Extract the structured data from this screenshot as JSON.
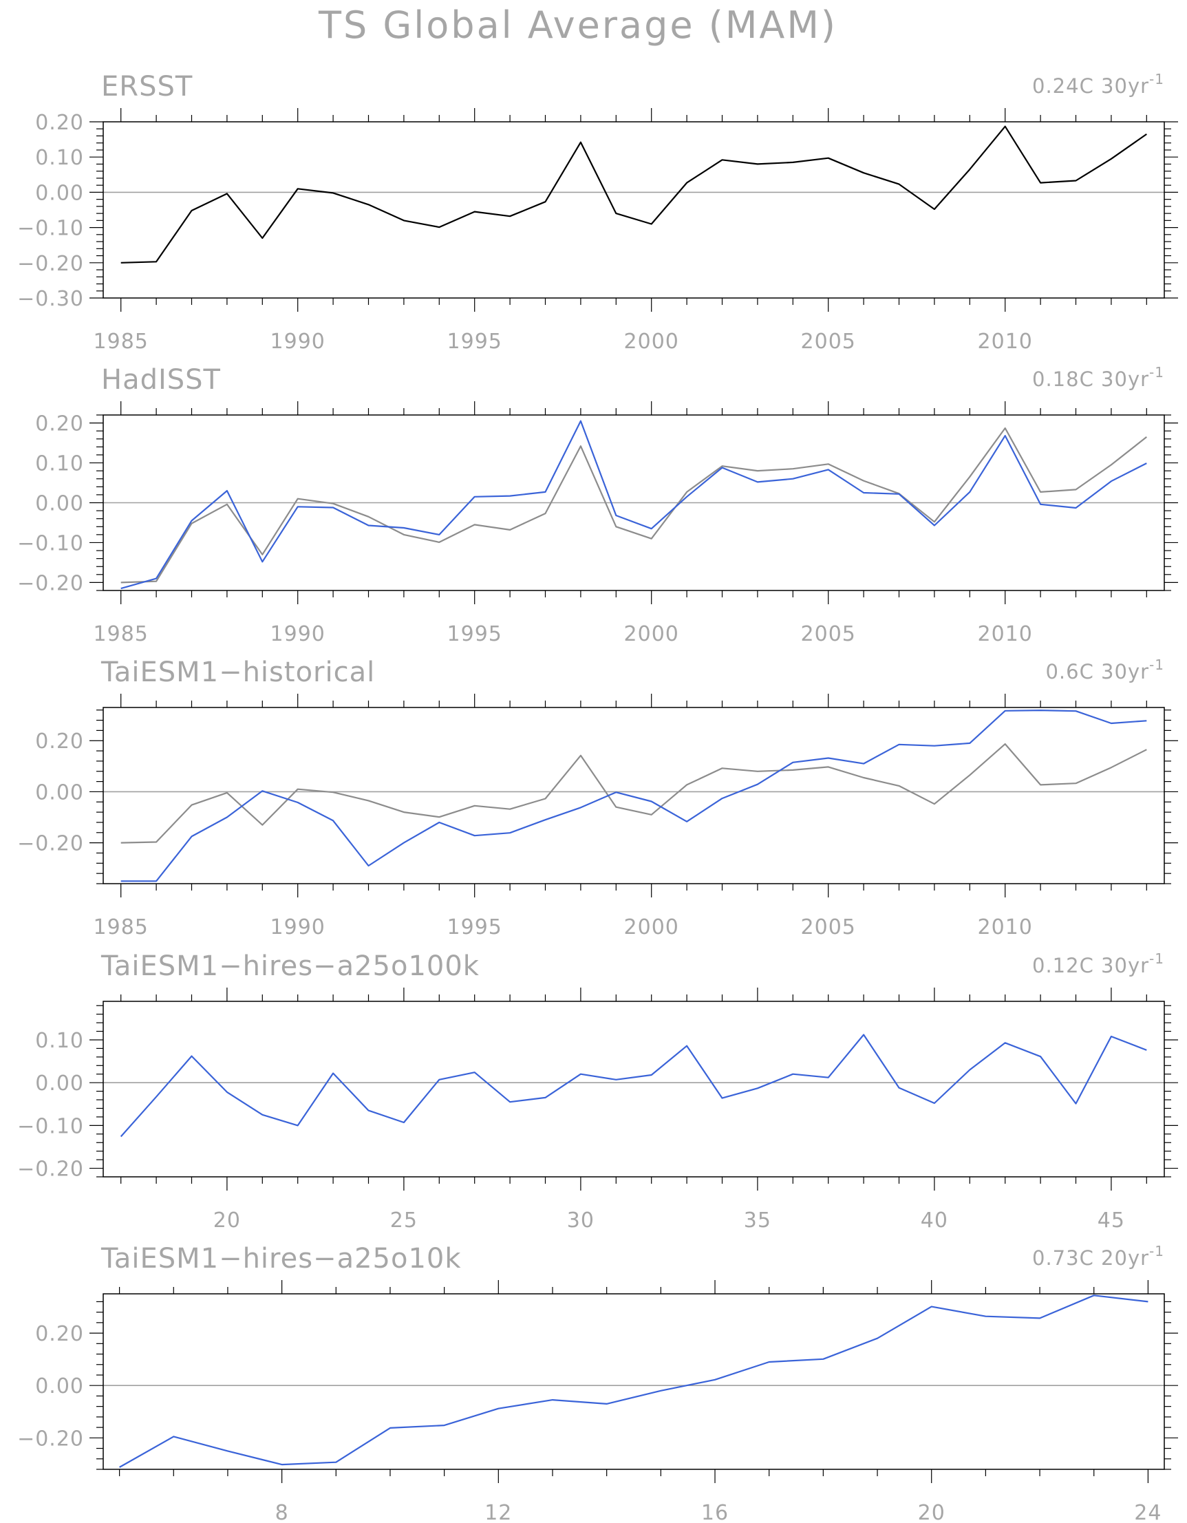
{
  "title": "TS Global Average (MAM)",
  "colors": {
    "reference": "#000000",
    "reference_overlay": "#8c8c8c",
    "model": "#3a63d8"
  },
  "chart_data": [
    {
      "type": "line",
      "title": "ERSST",
      "trend": {
        "value": "0.24C",
        "period": "30yr",
        "exponent": "-1"
      },
      "xlim": [
        1984.5,
        2014.5
      ],
      "ylim": [
        -0.3,
        0.2
      ],
      "x_major_ticks": [
        1985,
        1990,
        1995,
        2000,
        2005,
        2010
      ],
      "x_minor_step": 1,
      "y_major_ticks": [
        0.2,
        0.1,
        0.0,
        -0.1,
        -0.2,
        -0.3
      ],
      "y_tick_labels": [
        "0.20",
        "0.10",
        "0.00",
        "−0.10",
        "−0.20",
        "−0.30"
      ],
      "y_minor_step": 0.02,
      "zero_line": true,
      "series": [
        {
          "color": "#000000",
          "x": [
            1985,
            1986,
            1987,
            1988,
            1989,
            1990,
            1991,
            1992,
            1993,
            1994,
            1995,
            1996,
            1997,
            1998,
            1999,
            2000,
            2001,
            2002,
            2003,
            2004,
            2005,
            2006,
            2007,
            2008,
            2009,
            2010,
            2011,
            2012,
            2013,
            2014
          ],
          "values": [
            -0.2,
            -0.197,
            -0.052,
            -0.004,
            -0.13,
            0.01,
            -0.002,
            -0.035,
            -0.08,
            -0.099,
            -0.055,
            -0.068,
            -0.027,
            0.142,
            -0.06,
            -0.09,
            0.027,
            0.092,
            0.08,
            0.085,
            0.097,
            0.055,
            0.023,
            -0.048,
            0.065,
            0.187,
            0.027,
            0.033,
            0.095,
            0.165
          ]
        }
      ]
    },
    {
      "type": "line",
      "title": "HadISST",
      "trend": {
        "value": "0.18C",
        "period": "30yr",
        "exponent": "-1"
      },
      "xlim": [
        1984.5,
        2014.5
      ],
      "ylim": [
        -0.22,
        0.22
      ],
      "x_major_ticks": [
        1985,
        1990,
        1995,
        2000,
        2005,
        2010
      ],
      "x_minor_step": 1,
      "y_major_ticks": [
        0.2,
        0.1,
        0.0,
        -0.1,
        -0.2
      ],
      "y_tick_labels": [
        "0.20",
        "0.10",
        "0.00",
        "−0.10",
        "−0.20"
      ],
      "y_minor_step": 0.02,
      "zero_line": true,
      "series": [
        {
          "color": "#8c8c8c",
          "x": [
            1985,
            1986,
            1987,
            1988,
            1989,
            1990,
            1991,
            1992,
            1993,
            1994,
            1995,
            1996,
            1997,
            1998,
            1999,
            2000,
            2001,
            2002,
            2003,
            2004,
            2005,
            2006,
            2007,
            2008,
            2009,
            2010,
            2011,
            2012,
            2013,
            2014
          ],
          "values": [
            -0.2,
            -0.197,
            -0.052,
            -0.004,
            -0.13,
            0.01,
            -0.002,
            -0.035,
            -0.08,
            -0.099,
            -0.055,
            -0.068,
            -0.027,
            0.142,
            -0.06,
            -0.09,
            0.027,
            0.092,
            0.08,
            0.085,
            0.097,
            0.055,
            0.023,
            -0.048,
            0.065,
            0.187,
            0.027,
            0.033,
            0.095,
            0.165
          ]
        },
        {
          "color": "#3a63d8",
          "x": [
            1985,
            1986,
            1987,
            1988,
            1989,
            1990,
            1991,
            1992,
            1993,
            1994,
            1995,
            1996,
            1997,
            1998,
            1999,
            2000,
            2001,
            2002,
            2003,
            2004,
            2005,
            2006,
            2007,
            2008,
            2009,
            2010,
            2011,
            2012,
            2013,
            2014
          ],
          "values": [
            -0.215,
            -0.19,
            -0.045,
            0.03,
            -0.148,
            -0.01,
            -0.012,
            -0.057,
            -0.063,
            -0.08,
            0.015,
            0.017,
            0.027,
            0.205,
            -0.032,
            -0.065,
            0.015,
            0.088,
            0.052,
            0.06,
            0.083,
            0.025,
            0.022,
            -0.057,
            0.027,
            0.168,
            -0.004,
            -0.013,
            0.054,
            0.099
          ]
        }
      ]
    },
    {
      "type": "line",
      "title": "TaiESM1−historical",
      "trend": {
        "value": "0.6C",
        "period": "30yr",
        "exponent": "-1"
      },
      "xlim": [
        1984.5,
        2014.5
      ],
      "ylim": [
        -0.36,
        0.33
      ],
      "x_major_ticks": [
        1985,
        1990,
        1995,
        2000,
        2005,
        2010
      ],
      "x_minor_step": 1,
      "y_major_ticks": [
        0.2,
        0.0,
        -0.2
      ],
      "y_tick_labels": [
        "0.20",
        "0.00",
        "−0.20"
      ],
      "y_minor_step": 0.04,
      "zero_line": true,
      "series": [
        {
          "color": "#8c8c8c",
          "x": [
            1985,
            1986,
            1987,
            1988,
            1989,
            1990,
            1991,
            1992,
            1993,
            1994,
            1995,
            1996,
            1997,
            1998,
            1999,
            2000,
            2001,
            2002,
            2003,
            2004,
            2005,
            2006,
            2007,
            2008,
            2009,
            2010,
            2011,
            2012,
            2013,
            2014
          ],
          "values": [
            -0.2,
            -0.197,
            -0.052,
            -0.004,
            -0.13,
            0.01,
            -0.002,
            -0.035,
            -0.08,
            -0.099,
            -0.055,
            -0.068,
            -0.027,
            0.142,
            -0.06,
            -0.09,
            0.027,
            0.092,
            0.08,
            0.085,
            0.097,
            0.055,
            0.023,
            -0.048,
            0.065,
            0.187,
            0.027,
            0.033,
            0.095,
            0.165
          ]
        },
        {
          "color": "#3a63d8",
          "x": [
            1985,
            1986,
            1987,
            1988,
            1989,
            1990,
            1991,
            1992,
            1993,
            1994,
            1995,
            1996,
            1997,
            1998,
            1999,
            2000,
            2001,
            2002,
            2003,
            2004,
            2005,
            2006,
            2007,
            2008,
            2009,
            2010,
            2011,
            2012,
            2013,
            2014
          ],
          "values": [
            -0.35,
            -0.35,
            -0.175,
            -0.1,
            0.003,
            -0.042,
            -0.113,
            -0.29,
            -0.2,
            -0.12,
            -0.172,
            -0.161,
            -0.11,
            -0.062,
            -0.002,
            -0.038,
            -0.117,
            -0.026,
            0.029,
            0.115,
            0.132,
            0.11,
            0.185,
            0.18,
            0.19,
            0.317,
            0.319,
            0.316,
            0.268,
            0.278
          ]
        }
      ]
    },
    {
      "type": "line",
      "title": "TaiESM1−hires−a25o100k",
      "trend": {
        "value": "0.12C",
        "period": "30yr",
        "exponent": "-1"
      },
      "xlim": [
        16.5,
        46.5
      ],
      "ylim": [
        -0.22,
        0.19
      ],
      "x_major_ticks": [
        20,
        25,
        30,
        35,
        40,
        45
      ],
      "x_minor_step": 1,
      "y_major_ticks": [
        0.1,
        0.0,
        -0.1,
        -0.2
      ],
      "y_tick_labels": [
        "0.10",
        "0.00",
        "−0.10",
        "−0.20"
      ],
      "y_minor_step": 0.02,
      "zero_line": true,
      "series": [
        {
          "color": "#3a63d8",
          "x": [
            17,
            18,
            19,
            20,
            21,
            22,
            23,
            24,
            25,
            26,
            27,
            28,
            29,
            30,
            31,
            32,
            33,
            34,
            35,
            36,
            37,
            38,
            39,
            40,
            41,
            42,
            43,
            44,
            45,
            46
          ],
          "values": [
            -0.126,
            -0.033,
            0.062,
            -0.022,
            -0.075,
            -0.1,
            0.022,
            -0.065,
            -0.093,
            0.007,
            0.024,
            -0.045,
            -0.035,
            0.02,
            0.007,
            0.018,
            0.086,
            -0.036,
            -0.013,
            0.02,
            0.012,
            0.112,
            -0.012,
            -0.048,
            0.03,
            0.093,
            0.061,
            -0.049,
            0.108,
            0.076
          ]
        }
      ]
    },
    {
      "type": "line",
      "title": "TaiESM1−hires−a25o10k",
      "trend": {
        "value": "0.73C",
        "period": "20yr",
        "exponent": "-1"
      },
      "xlim": [
        4.7,
        24.3
      ],
      "ylim": [
        -0.32,
        0.35
      ],
      "x_major_ticks": [
        8,
        12,
        16,
        20,
        24
      ],
      "x_minor_step": 1,
      "y_major_ticks": [
        0.2,
        0.0,
        -0.2
      ],
      "y_tick_labels": [
        "0.20",
        "0.00",
        "−0.20"
      ],
      "y_minor_step": 0.04,
      "zero_line": true,
      "series": [
        {
          "color": "#3a63d8",
          "x": [
            5,
            6,
            7,
            8,
            9,
            10,
            11,
            12,
            13,
            14,
            15,
            16,
            17,
            18,
            19,
            20,
            21,
            22,
            23,
            24
          ],
          "values": [
            -0.312,
            -0.195,
            -0.25,
            -0.302,
            -0.293,
            -0.162,
            -0.152,
            -0.088,
            -0.055,
            -0.07,
            -0.02,
            0.022,
            0.09,
            0.101,
            0.18,
            0.301,
            0.264,
            0.257,
            0.344,
            0.32
          ]
        }
      ]
    }
  ]
}
